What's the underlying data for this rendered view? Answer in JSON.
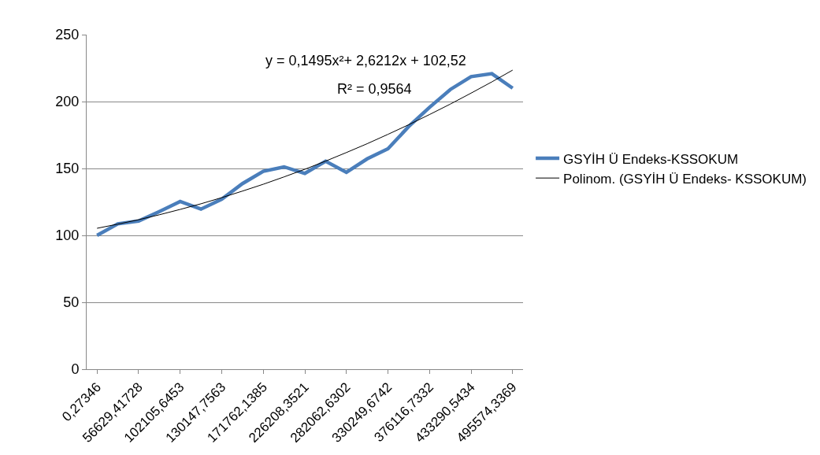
{
  "chart_data": {
    "type": "line",
    "categories": [
      "0,27346",
      null,
      "56629,41728",
      null,
      "102105,6453",
      null,
      "130147,7563",
      null,
      "171762,1385",
      null,
      "226208,3521",
      null,
      "282062,6302",
      null,
      "330249,6742",
      null,
      "376116,7332",
      null,
      "433290,5434",
      null,
      "495574,3369"
    ],
    "series": [
      {
        "name": "GSYİH Ü Endeks-KSSOKUM",
        "color": "#4a7ebb",
        "values": [
          100,
          108.6,
          110.7,
          117.8,
          125.3,
          119.6,
          127,
          138.7,
          147.9,
          151.2,
          146.3,
          155.4,
          147.1,
          157.2,
          164.7,
          181.4,
          195.7,
          209,
          218.6,
          220.8,
          210
        ]
      },
      {
        "name": "Polinom. (GSYİH Ü Endeks- KSSOKUM)",
        "color": "#000000",
        "values": [
          105.3,
          108.4,
          111.7,
          115.4,
          119.4,
          123.6,
          128.2,
          133.1,
          138.2,
          143.7,
          149.4,
          155.5,
          161.9,
          168.5,
          175.5,
          182.7,
          190.3,
          198.1,
          206.3,
          214.7,
          223.5
        ]
      }
    ],
    "ylim": [
      0,
      250
    ],
    "yticks": [
      0,
      50,
      100,
      150,
      200,
      250
    ],
    "grid": "y",
    "legend": "right",
    "annotations": [
      "y = 0,1495x²+ 2,6212x + 102,52",
      "R² = 0,9564"
    ]
  }
}
